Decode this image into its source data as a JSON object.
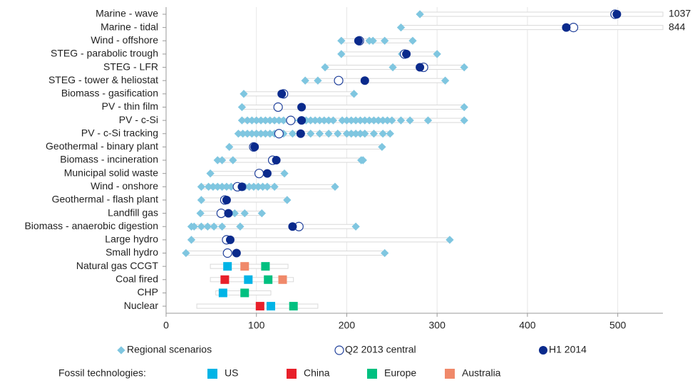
{
  "chart_data": {
    "type": "dot-range",
    "categories": [
      "Marine - wave",
      "Marine - tidal",
      "Wind - offshore",
      "STEG - parabolic trough",
      "STEG - LFR",
      "STEG - tower & heliostat",
      "Biomass - gasification",
      "PV - thin film",
      "PV - c-Si",
      "PV - c-Si tracking",
      "Geothermal - binary plant",
      "Biomass - incineration",
      "Municipal solid waste",
      "Wind - onshore",
      "Geothermal - flash plant",
      "Landfill gas",
      "Biomass - anaerobic digestion",
      "Large hydro",
      "Small hydro",
      "Natural gas CCGT",
      "Coal fired",
      "CHP",
      "Nuclear"
    ],
    "xlim": [
      0,
      550
    ],
    "xticks": [
      0,
      100,
      200,
      300,
      400,
      500
    ],
    "grid": true,
    "ranges": {
      "color": "#d9d9d9",
      "values": [
        [
          280,
          1037
        ],
        [
          260,
          844
        ],
        [
          194,
          273
        ],
        [
          194,
          300
        ],
        [
          176,
          330
        ],
        [
          154,
          309
        ],
        [
          86,
          208
        ],
        [
          84,
          330
        ],
        [
          84,
          330
        ],
        [
          80,
          248
        ],
        [
          70,
          239
        ],
        [
          57,
          218
        ],
        [
          49,
          131
        ],
        [
          39,
          187
        ],
        [
          39,
          134
        ],
        [
          38,
          106
        ],
        [
          28,
          210
        ],
        [
          28,
          314
        ],
        [
          22,
          242
        ],
        [
          49,
          135
        ],
        [
          49,
          141
        ],
        [
          55,
          116
        ],
        [
          34,
          168
        ]
      ]
    },
    "scenarios": {
      "name": "Regional scenarios",
      "color": "#7fc6e0",
      "values": [
        [
          281,
          496
        ],
        [
          260
        ],
        [
          194,
          214,
          225,
          229,
          242,
          273
        ],
        [
          194,
          261,
          300
        ],
        [
          176,
          251,
          330
        ],
        [
          154,
          168,
          309
        ],
        [
          86,
          208
        ],
        [
          84,
          330
        ],
        [
          84,
          90,
          95,
          100,
          105,
          110,
          115,
          120,
          125,
          130,
          140,
          148,
          155,
          160,
          165,
          170,
          175,
          180,
          185,
          195,
          200,
          205,
          210,
          215,
          220,
          225,
          230,
          235,
          240,
          245,
          250,
          260,
          270,
          290,
          330
        ],
        [
          80,
          85,
          90,
          95,
          100,
          105,
          110,
          115,
          120,
          130,
          140,
          150,
          160,
          170,
          180,
          190,
          200,
          205,
          210,
          215,
          220,
          230,
          240,
          248
        ],
        [
          70,
          239
        ],
        [
          57,
          62,
          74,
          118,
          216,
          218
        ],
        [
          49,
          131
        ],
        [
          39,
          47,
          52,
          57,
          62,
          67,
          72,
          77,
          82,
          87,
          92,
          97,
          102,
          107,
          112,
          120,
          187
        ],
        [
          39,
          134
        ],
        [
          38,
          76,
          87,
          106
        ],
        [
          28,
          31,
          39,
          46,
          53,
          62,
          82,
          210
        ],
        [
          28,
          314
        ],
        [
          22,
          242
        ],
        [],
        [],
        [],
        []
      ]
    },
    "q2": {
      "name": "Q2 2013 central",
      "color": "#1f3f9a",
      "values": [
        497,
        451,
        214,
        264,
        285,
        191,
        130,
        124,
        138,
        125,
        97,
        118,
        103,
        79,
        65,
        61,
        147,
        67,
        68,
        null,
        null,
        null,
        null
      ]
    },
    "h1": {
      "name": "H1 2014",
      "color": "#0a2a8c",
      "values": [
        499,
        443,
        213,
        266,
        281,
        220,
        128,
        150,
        150,
        149,
        98,
        122,
        112,
        84,
        67,
        69,
        140,
        71,
        78,
        null,
        null,
        null,
        null
      ]
    },
    "fossil_label": "Fossil technologies:",
    "series": [
      {
        "name": "US",
        "color": "#00b4e6",
        "values": [
          null,
          null,
          null,
          null,
          null,
          null,
          null,
          null,
          null,
          null,
          null,
          null,
          null,
          null,
          null,
          null,
          null,
          null,
          null,
          68,
          91,
          63,
          116
        ]
      },
      {
        "name": "China",
        "color": "#e8202a",
        "values": [
          null,
          null,
          null,
          null,
          null,
          null,
          null,
          null,
          null,
          null,
          null,
          null,
          null,
          null,
          null,
          null,
          null,
          null,
          null,
          null,
          65,
          null,
          104
        ]
      },
      {
        "name": "Europe",
        "color": "#00c080",
        "values": [
          null,
          null,
          null,
          null,
          null,
          null,
          null,
          null,
          null,
          null,
          null,
          null,
          null,
          null,
          null,
          null,
          null,
          null,
          null,
          110,
          113,
          87,
          141
        ]
      },
      {
        "name": "Australia",
        "color": "#f0896a",
        "values": [
          null,
          null,
          null,
          null,
          null,
          null,
          null,
          null,
          null,
          null,
          null,
          null,
          null,
          null,
          null,
          null,
          null,
          null,
          null,
          87,
          129,
          null,
          null
        ]
      }
    ]
  }
}
